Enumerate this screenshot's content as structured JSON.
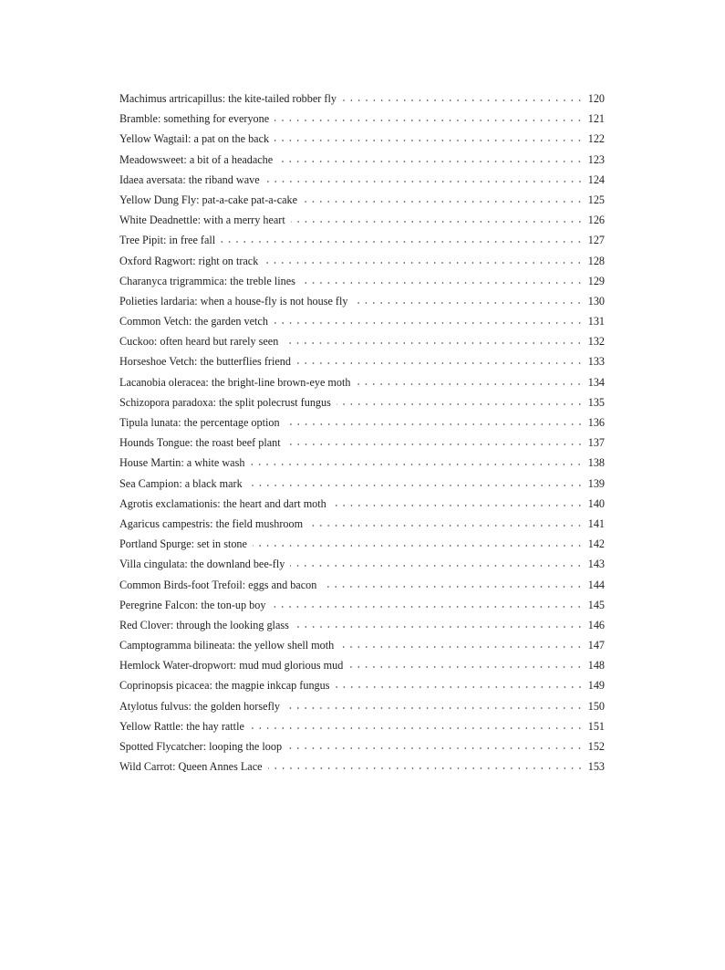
{
  "toc": [
    {
      "title": "Machimus artricapillus: the kite-tailed robber fly",
      "page": "120"
    },
    {
      "title": "Bramble: something for everyone",
      "page": "121"
    },
    {
      "title": "Yellow Wagtail: a pat on the back",
      "page": "122"
    },
    {
      "title": "Meadowsweet: a bit of a headache",
      "page": "123"
    },
    {
      "title": "Idaea aversata: the riband wave",
      "page": "124"
    },
    {
      "title": "Yellow Dung Fly: pat-a-cake pat-a-cake",
      "page": "125"
    },
    {
      "title": "White Deadnettle: with a merry heart",
      "page": "126"
    },
    {
      "title": "Tree Pipit: in free fall",
      "page": "127"
    },
    {
      "title": "Oxford Ragwort: right on track",
      "page": "128"
    },
    {
      "title": "Charanyca trigrammica: the treble lines",
      "page": "129"
    },
    {
      "title": "Polieties lardaria: when a house-fly is not house fly",
      "page": "130"
    },
    {
      "title": "Common Vetch: the garden vetch",
      "page": "131"
    },
    {
      "title": "Cuckoo: often heard but rarely seen",
      "page": "132"
    },
    {
      "title": "Horseshoe Vetch: the butterflies friend",
      "page": "133"
    },
    {
      "title": "Lacanobia oleracea: the bright-line brown-eye moth",
      "page": "134"
    },
    {
      "title": "Schizopora paradoxa: the split polecrust fungus",
      "page": "135"
    },
    {
      "title": "Tipula lunata: the percentage option",
      "page": "136"
    },
    {
      "title": "Hounds Tongue: the roast beef plant",
      "page": "137"
    },
    {
      "title": "House Martin: a white wash",
      "page": "138"
    },
    {
      "title": "Sea Campion: a black mark",
      "page": "139"
    },
    {
      "title": "Agrotis exclamationis: the heart and dart moth",
      "page": "140"
    },
    {
      "title": "Agaricus campestris: the field mushroom",
      "page": "141"
    },
    {
      "title": "Portland Spurge: set in stone",
      "page": "142"
    },
    {
      "title": "Villa cingulata: the downland bee-fly",
      "page": "143"
    },
    {
      "title": "Common Birds-foot Trefoil: eggs and bacon",
      "page": "144"
    },
    {
      "title": "Peregrine Falcon: the ton-up boy",
      "page": "145"
    },
    {
      "title": "Red Clover: through the looking glass",
      "page": "146"
    },
    {
      "title": "Camptogramma bilineata: the yellow shell moth",
      "page": "147"
    },
    {
      "title": "Hemlock Water-dropwort: mud mud glorious mud",
      "page": "148"
    },
    {
      "title": "Coprinopsis picacea: the magpie inkcap fungus",
      "page": "149"
    },
    {
      "title": "Atylotus fulvus: the golden horsefly",
      "page": "150"
    },
    {
      "title": "Yellow Rattle: the hay rattle",
      "page": "151"
    },
    {
      "title": "Spotted Flycatcher: looping the loop",
      "page": "152"
    },
    {
      "title": "Wild Carrot: Queen Annes Lace",
      "page": "153"
    }
  ]
}
